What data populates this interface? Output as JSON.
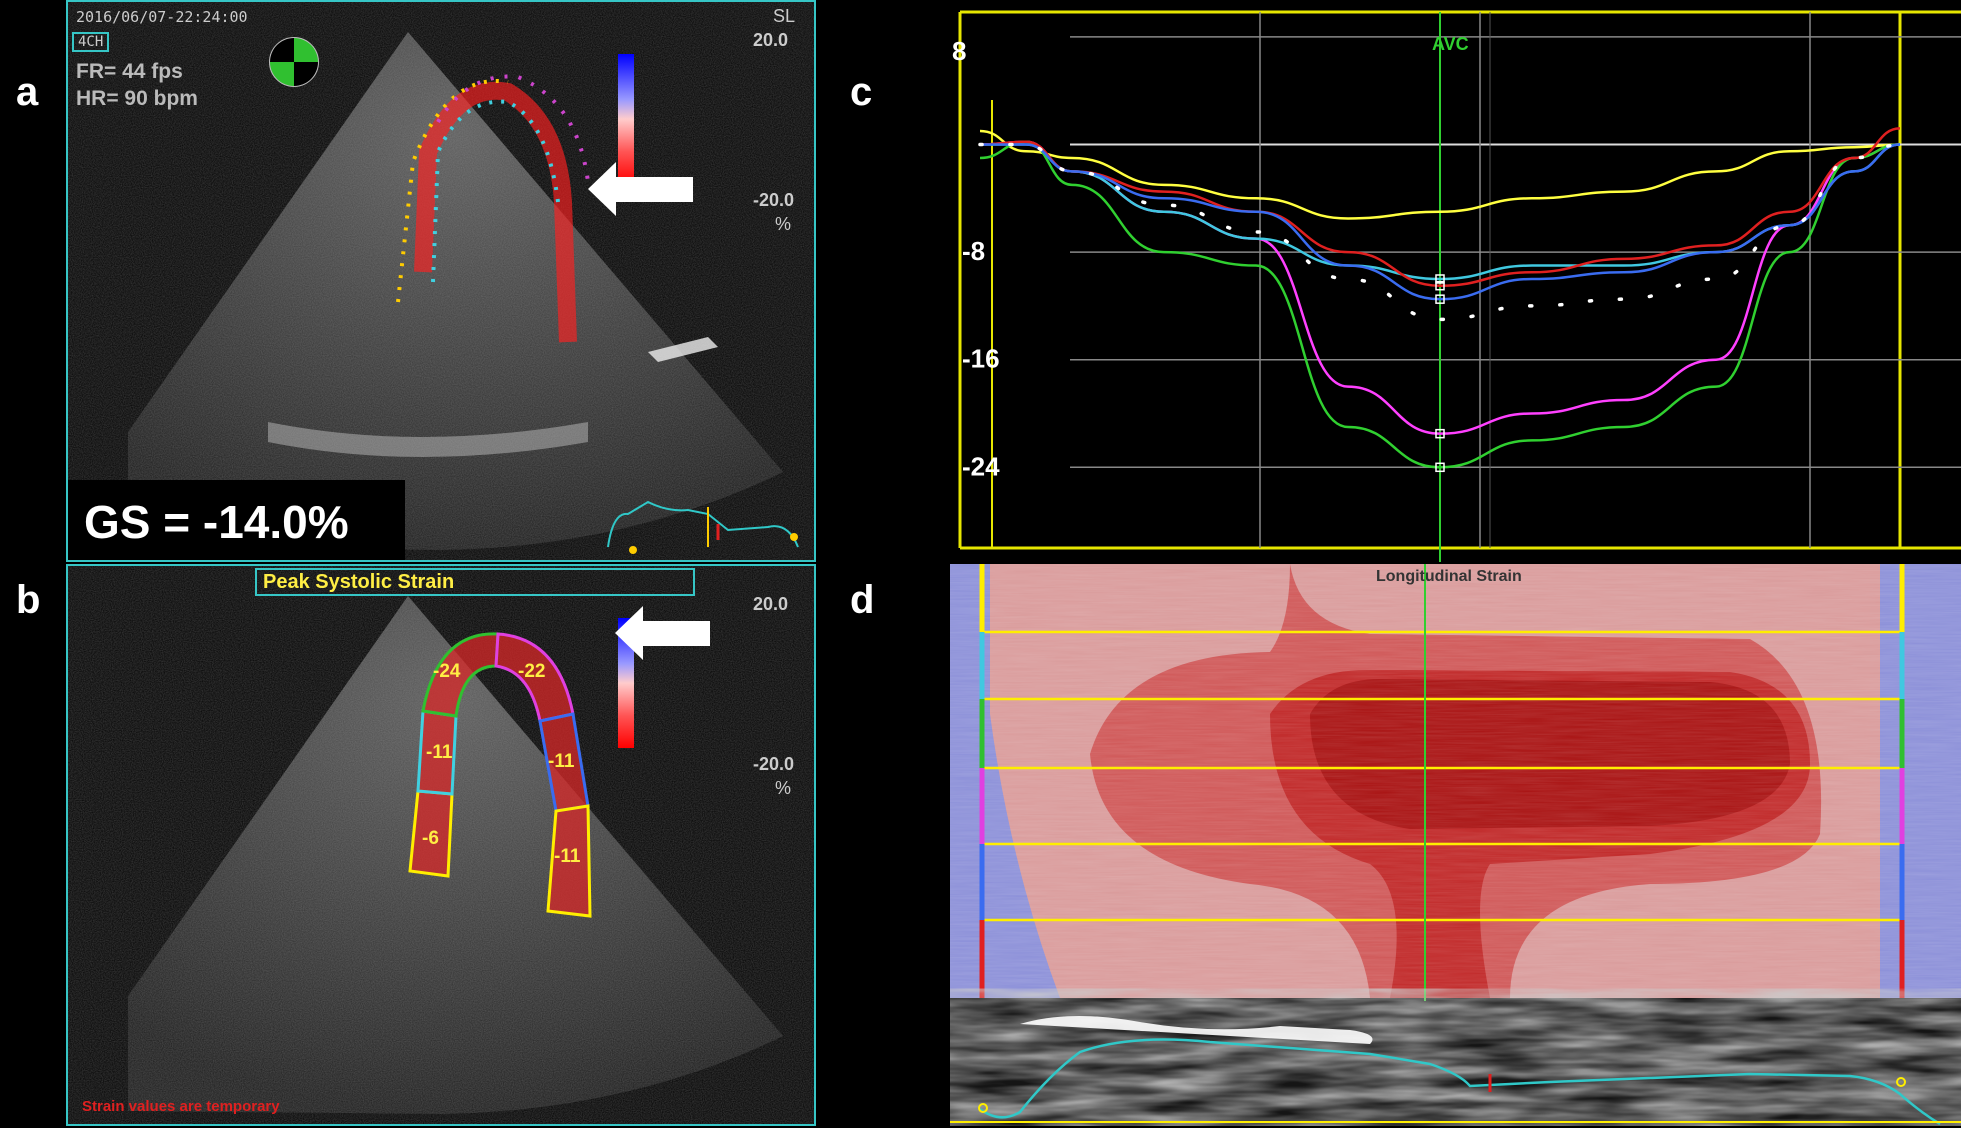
{
  "panel_labels": {
    "a": "a",
    "b": "b",
    "c": "c",
    "d": "d"
  },
  "panel_a": {
    "timestamp": "2016/06/07-22:24:00",
    "view": "4CH",
    "fr": "FR= 44 fps",
    "hr": "HR= 90 bpm",
    "scale_title": "SL",
    "scale_max": "20.0",
    "scale_min": "-20.0",
    "scale_unit": "%",
    "gs": "GS = -14.0%"
  },
  "panel_b": {
    "title": "Peak Systolic Strain",
    "scale_max": "20.0",
    "scale_min": "-20.0",
    "scale_unit": "%",
    "segments": [
      "-24",
      "-22",
      "-11",
      "-11",
      "-6",
      "-11"
    ],
    "warning": "Strain values are temporary"
  },
  "chart_data": {
    "type": "line",
    "marker_label": "AVC",
    "y_ticks": [
      "8",
      "-8",
      "-16",
      "-24"
    ],
    "ylim": [
      10,
      -30
    ],
    "xlim": [
      0,
      1
    ],
    "avc_x": 0.5,
    "series": [
      {
        "color": "#ffff40",
        "x": [
          0,
          0.05,
          0.1,
          0.2,
          0.3,
          0.4,
          0.5,
          0.6,
          0.7,
          0.8,
          0.88,
          0.95,
          1
        ],
        "y": [
          1,
          -0.5,
          -1,
          -3,
          -4,
          -5.5,
          -5,
          -4,
          -3.5,
          -2,
          -0.5,
          -0.2,
          0
        ]
      },
      {
        "color": "#ff40ff",
        "x": [
          0,
          0.05,
          0.1,
          0.2,
          0.3,
          0.4,
          0.5,
          0.6,
          0.7,
          0.8,
          0.88,
          0.95,
          1
        ],
        "y": [
          0,
          0.2,
          -2,
          -5,
          -7,
          -18,
          -21.5,
          -20,
          -19,
          -16,
          -6,
          -1,
          0
        ]
      },
      {
        "color": "#30d030",
        "x": [
          0,
          0.05,
          0.1,
          0.2,
          0.3,
          0.4,
          0.5,
          0.6,
          0.7,
          0.8,
          0.88,
          0.95,
          1
        ],
        "y": [
          -1,
          0.2,
          -3,
          -8,
          -9,
          -21,
          -24,
          -22,
          -21,
          -18,
          -8,
          -1,
          0
        ]
      },
      {
        "color": "#40c8e0",
        "x": [
          0,
          0.05,
          0.1,
          0.2,
          0.3,
          0.4,
          0.5,
          0.6,
          0.7,
          0.8,
          0.88,
          0.95,
          1
        ],
        "y": [
          0,
          0,
          -2,
          -5,
          -7,
          -9,
          -10,
          -9,
          -9,
          -8,
          -6,
          -2,
          0
        ]
      },
      {
        "color": "#e02020",
        "x": [
          0,
          0.05,
          0.1,
          0.2,
          0.3,
          0.4,
          0.5,
          0.6,
          0.7,
          0.8,
          0.88,
          0.95,
          1
        ],
        "y": [
          0,
          0.2,
          -2,
          -3.5,
          -5,
          -8,
          -10.5,
          -9.5,
          -8.5,
          -7.5,
          -5,
          -1,
          1.2
        ]
      },
      {
        "color": "#3a6cf0",
        "x": [
          0,
          0.05,
          0.1,
          0.2,
          0.3,
          0.4,
          0.5,
          0.6,
          0.7,
          0.8,
          0.88,
          0.95,
          1
        ],
        "y": [
          0,
          0,
          -2,
          -4,
          -5,
          -9,
          -11.5,
          -10,
          -9.5,
          -8,
          -6,
          -2,
          0
        ]
      },
      {
        "color": "#ffffff",
        "dotted": true,
        "x": [
          0,
          0.05,
          0.1,
          0.2,
          0.3,
          0.4,
          0.5,
          0.6,
          0.7,
          0.8,
          0.88,
          0.95,
          1
        ],
        "y": [
          0,
          0,
          -2,
          -4.5,
          -6.5,
          -10,
          -13,
          -12,
          -11.5,
          -10,
          -6,
          -1,
          0
        ]
      }
    ]
  },
  "panel_d": {
    "title": "Longitudinal Strain"
  }
}
